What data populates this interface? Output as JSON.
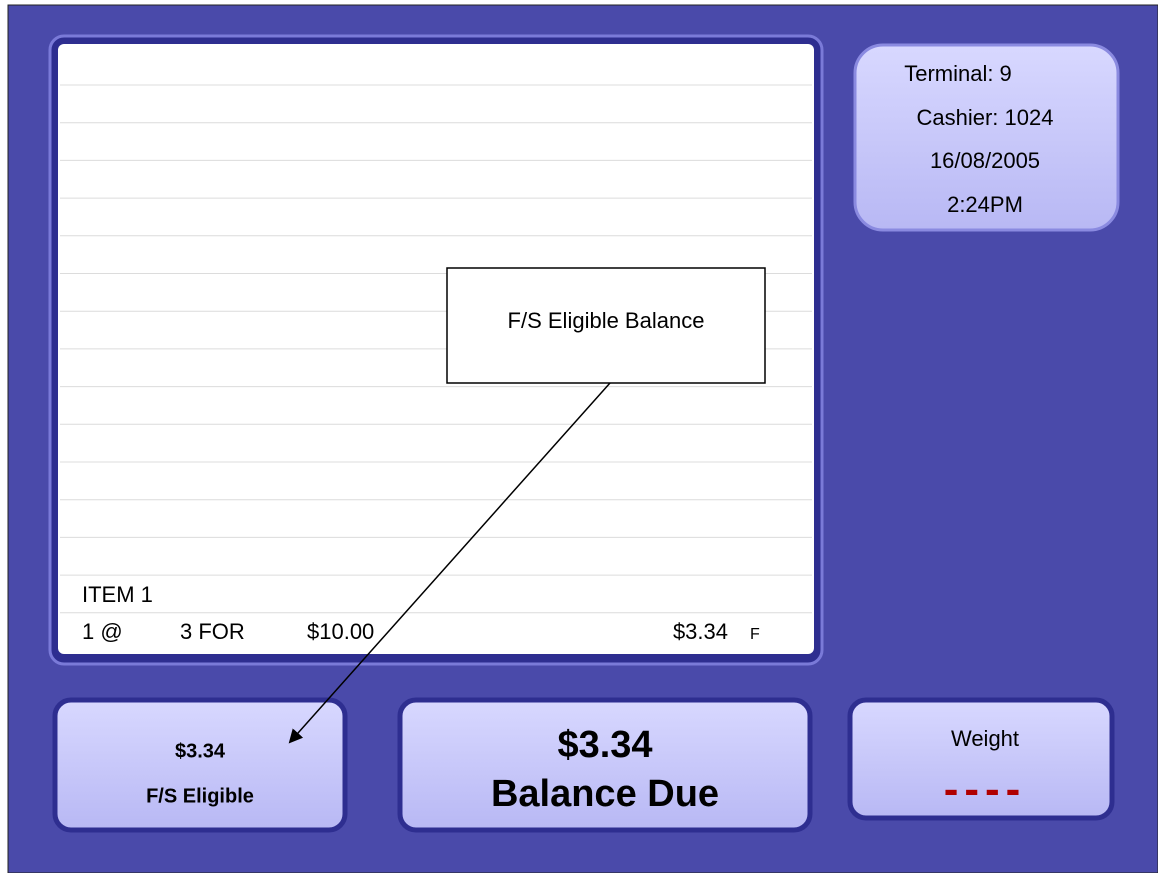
{
  "info": {
    "terminal": "Terminal: 9",
    "cashier": "Cashier: 1024",
    "date": "16/08/2005",
    "time": "2:24PM"
  },
  "callout": {
    "label": "F/S Eligible Balance"
  },
  "receipt": {
    "item_name": "ITEM 1",
    "quantity": "1 @",
    "deal": "3 FOR",
    "deal_price": "$10.00",
    "amount": "$3.34",
    "flag": "F"
  },
  "fs_eligible": {
    "amount": "$3.34",
    "label": "F/S Eligible"
  },
  "balance_due": {
    "amount": "$3.34",
    "label": "Balance Due"
  },
  "weight": {
    "label": "Weight",
    "value": "----"
  }
}
